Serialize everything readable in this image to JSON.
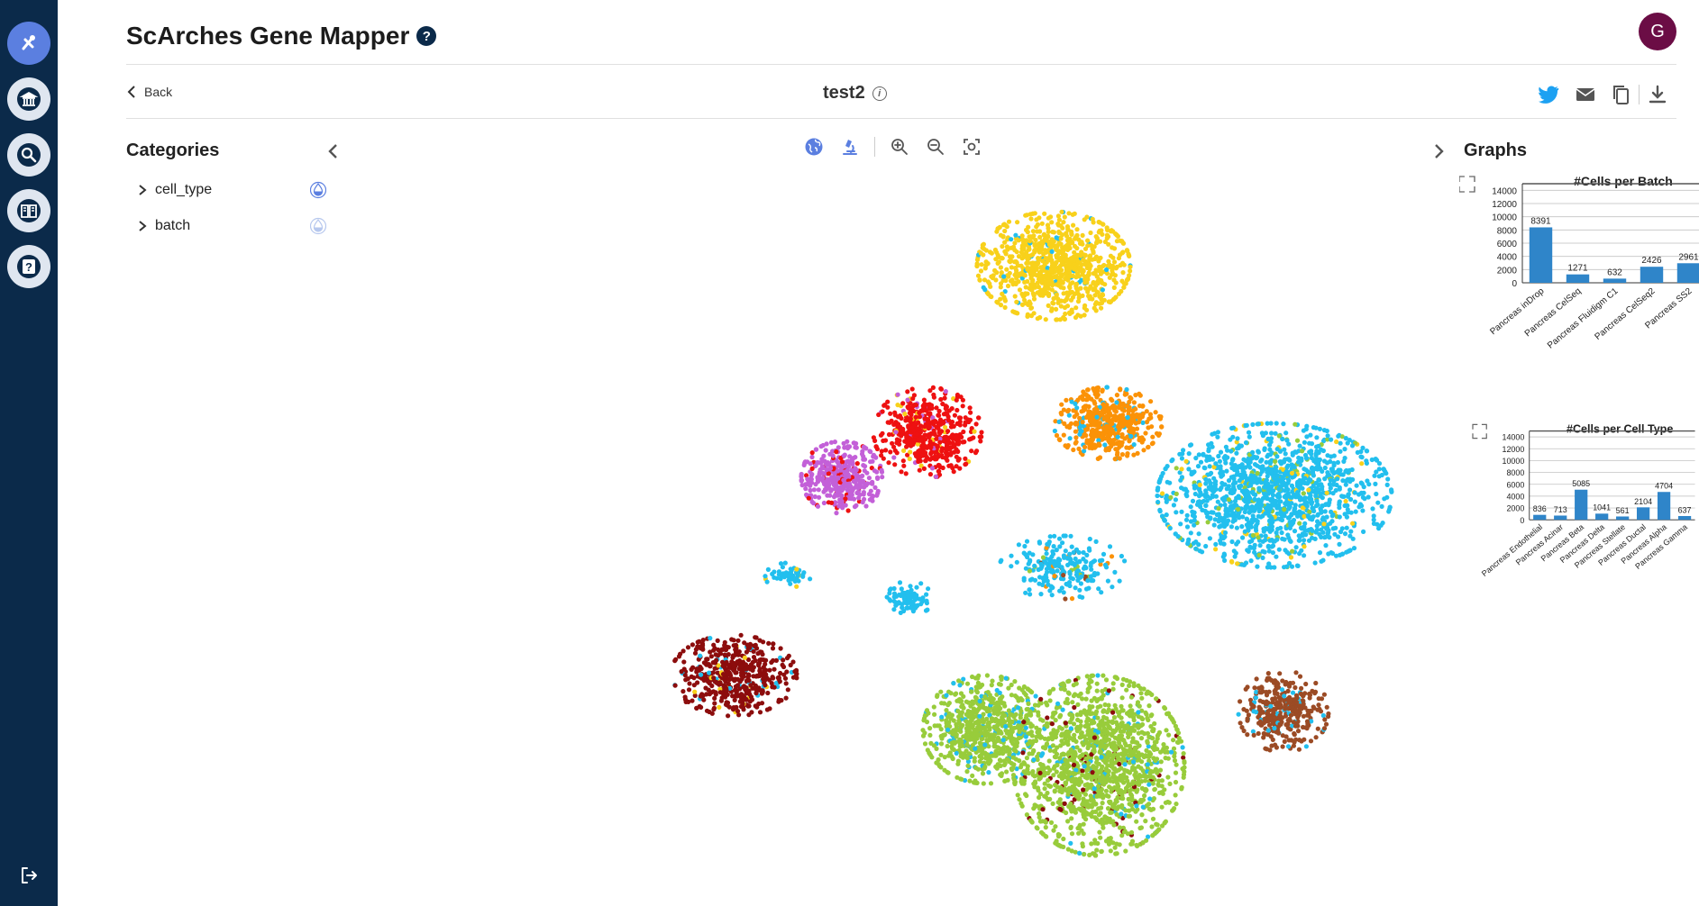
{
  "app": {
    "title": "ScArches Gene Mapper",
    "help_glyph": "?",
    "user_initial": "G"
  },
  "project": {
    "back_label": "Back",
    "name": "test2",
    "info_glyph": "i"
  },
  "sidebar": {
    "items": [
      {
        "name": "mapper-icon",
        "active": true
      },
      {
        "name": "institution-icon",
        "active": false
      },
      {
        "name": "search-icon",
        "active": false
      },
      {
        "name": "docs-icon",
        "active": false
      },
      {
        "name": "help-icon",
        "active": false
      }
    ],
    "logout_icon": "logout-icon"
  },
  "categories": {
    "title": "Categories",
    "items": [
      {
        "label": "cell_type",
        "color_mode": "active"
      },
      {
        "label": "batch",
        "color_mode": "inactive"
      }
    ]
  },
  "toolbar": {
    "icons": [
      "globe-icon",
      "microscope-icon",
      "zoom-in-icon",
      "zoom-out-icon",
      "fit-screen-icon"
    ]
  },
  "share": {
    "icons": [
      "twitter-icon",
      "mail-icon",
      "copy-icon",
      "download-icon"
    ]
  },
  "colors": {
    "sidebar": "#0b2a4a",
    "accent": "#5b7fe0",
    "bar": "#2f85c9",
    "clusters": {
      "alpha": "#22bfee",
      "beta": "#98cc3b",
      "gamma": "#f8d11b",
      "delta": "#fb9207",
      "ductal": "#ee1111",
      "acinar": "#c360d8",
      "stellate": "#8c0d0d",
      "endothelial": "#9b4b25"
    }
  },
  "graphs": {
    "title": "Graphs"
  },
  "chart_data": [
    {
      "type": "bar",
      "title": "#Cells per Batch",
      "categories": [
        "Pancreas inDrop",
        "Pancreas CelSeq",
        "Pancreas Fluidigm C1",
        "Pancreas CelSeq2",
        "Pancreas SS2"
      ],
      "values": [
        8391,
        1271,
        632,
        2426,
        2961
      ],
      "yticks": [
        0,
        2000,
        4000,
        6000,
        8000,
        10000,
        12000,
        14000
      ],
      "ylim": [
        0,
        15000
      ],
      "grid": true
    },
    {
      "type": "bar",
      "title": "#Cells per Cell Type",
      "categories": [
        "Pancreas Endothelial",
        "Pancreas Acinar",
        "Pancreas Beta",
        "Pancreas Delta",
        "Pancreas Stellate",
        "Pancreas Ductal",
        "Pancreas Alpha",
        "Pancreas Gamma"
      ],
      "values": [
        836,
        713,
        5085,
        1041,
        561,
        2104,
        4704,
        637
      ],
      "yticks": [
        0,
        2000,
        4000,
        6000,
        8000,
        10000,
        12000,
        14000
      ],
      "ylim": [
        0,
        15000
      ],
      "grid": true
    }
  ]
}
